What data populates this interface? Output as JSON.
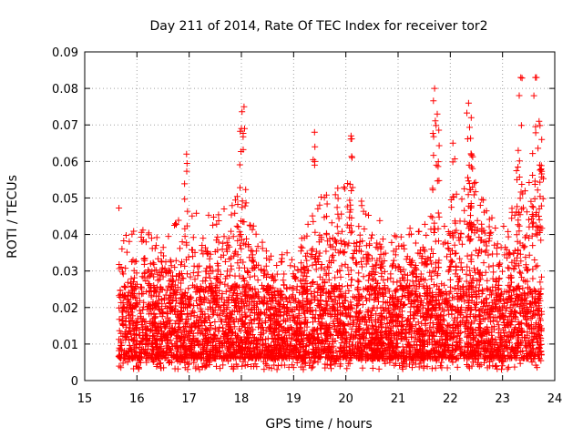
{
  "chart_data": {
    "type": "scatter",
    "title": "Day 211 of 2014, Rate Of TEC Index for receiver tor2",
    "xlabel": "GPS time / hours",
    "ylabel": "ROTI / TECUs",
    "xlim": [
      15,
      24
    ],
    "ylim": [
      0,
      0.09
    ],
    "xticks": [
      "15",
      "16",
      "17",
      "18",
      "19",
      "20",
      "21",
      "22",
      "23",
      "24"
    ],
    "yticks": [
      "0",
      "0.01",
      "0.02",
      "0.03",
      "0.04",
      "0.05",
      "0.06",
      "0.07",
      "0.08",
      "0.09"
    ],
    "grid": true,
    "marker": "+",
    "color": "#ff0000",
    "x_start": 15.65,
    "x_end": 23.75,
    "series": [
      {
        "name": "ROTI",
        "peaks": [
          {
            "x": 16.95,
            "y": 0.062
          },
          {
            "x": 18.05,
            "y": 0.075
          },
          {
            "x": 18.0,
            "y": 0.069
          },
          {
            "x": 19.4,
            "y": 0.068
          },
          {
            "x": 20.1,
            "y": 0.067
          },
          {
            "x": 21.7,
            "y": 0.08
          },
          {
            "x": 21.75,
            "y": 0.073
          },
          {
            "x": 22.35,
            "y": 0.076
          },
          {
            "x": 22.4,
            "y": 0.072
          },
          {
            "x": 23.35,
            "y": 0.083
          },
          {
            "x": 23.65,
            "y": 0.083
          },
          {
            "x": 23.6,
            "y": 0.078
          },
          {
            "x": 23.7,
            "y": 0.071
          },
          {
            "x": 23.75,
            "y": 0.066
          },
          {
            "x": 23.3,
            "y": 0.063
          },
          {
            "x": 22.05,
            "y": 0.065
          },
          {
            "x": 22.4,
            "y": 0.062
          }
        ],
        "envelope": [
          {
            "x": 15.7,
            "y": 0.04
          },
          {
            "x": 16.0,
            "y": 0.043
          },
          {
            "x": 16.5,
            "y": 0.038
          },
          {
            "x": 17.0,
            "y": 0.05
          },
          {
            "x": 17.5,
            "y": 0.045
          },
          {
            "x": 18.0,
            "y": 0.052
          },
          {
            "x": 18.5,
            "y": 0.035
          },
          {
            "x": 19.0,
            "y": 0.035
          },
          {
            "x": 19.5,
            "y": 0.05
          },
          {
            "x": 20.0,
            "y": 0.055
          },
          {
            "x": 20.5,
            "y": 0.048
          },
          {
            "x": 21.0,
            "y": 0.04
          },
          {
            "x": 21.5,
            "y": 0.045
          },
          {
            "x": 22.0,
            "y": 0.05
          },
          {
            "x": 22.5,
            "y": 0.055
          },
          {
            "x": 23.0,
            "y": 0.045
          },
          {
            "x": 23.5,
            "y": 0.055
          },
          {
            "x": 23.75,
            "y": 0.06
          }
        ],
        "baseline_min": 0.003,
        "typical_range": [
          0.005,
          0.03
        ]
      }
    ]
  }
}
